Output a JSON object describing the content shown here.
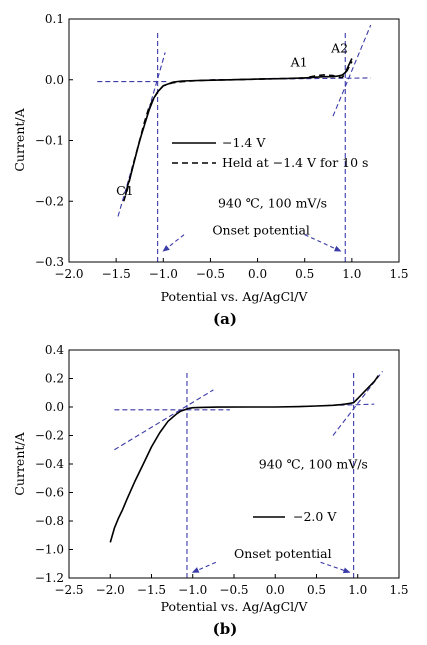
{
  "chart_data": [
    {
      "panel_label": "(a)",
      "type": "line",
      "xlabel": "Potential vs. Ag/AgCl/V",
      "ylabel": "Current/A",
      "xlim": [
        -2.0,
        1.5
      ],
      "ylim": [
        -0.3,
        0.1
      ],
      "xticks": [
        -2.0,
        -1.5,
        -1.0,
        -0.5,
        0.0,
        0.5,
        1.0,
        1.5
      ],
      "xtick_labels": [
        "−2.0",
        "−1.5",
        "−1.0",
        "−0.5",
        "0.0",
        "0.5",
        "1.0",
        "1.5"
      ],
      "yticks": [
        0.1,
        0.0,
        -0.1,
        -0.2,
        -0.3
      ],
      "ytick_labels": [
        "0.1",
        "0.0",
        "−0.1",
        "−0.2",
        "−0.3"
      ],
      "grid": false,
      "legend_position": "center-right",
      "series": [
        {
          "name": "−1.4 V",
          "style": "solid",
          "x": [
            -1.4,
            -1.38,
            -1.35,
            -1.3,
            -1.25,
            -1.2,
            -1.15,
            -1.1,
            -1.06,
            -1.0,
            -0.9,
            -0.8,
            -0.6,
            -0.3,
            0.0,
            0.3,
            0.5,
            0.6,
            0.7,
            0.8,
            0.85,
            0.9,
            0.93,
            0.95,
            0.97,
            1.0
          ],
          "y": [
            -0.19,
            -0.175,
            -0.16,
            -0.13,
            -0.1,
            -0.075,
            -0.05,
            -0.03,
            -0.02,
            -0.01,
            -0.004,
            -0.002,
            -0.001,
            0.0,
            0.001,
            0.002,
            0.003,
            0.004,
            0.005,
            0.005,
            0.006,
            0.008,
            0.012,
            0.018,
            0.025,
            0.035
          ]
        },
        {
          "name": "Held at −1.4 V for 10 s",
          "style": "dashed",
          "x": [
            -1.42,
            -1.38,
            -1.32,
            -1.25,
            -1.2,
            -1.15,
            -1.1,
            -1.05,
            -1.0,
            -0.9,
            -0.8,
            -0.6,
            -0.3,
            0.0,
            0.3,
            0.5,
            0.6,
            0.7,
            0.8,
            0.85,
            0.9,
            0.95,
            1.0
          ],
          "y": [
            -0.2,
            -0.18,
            -0.14,
            -0.1,
            -0.07,
            -0.045,
            -0.03,
            -0.018,
            -0.01,
            -0.005,
            -0.003,
            -0.001,
            0.0,
            0.001,
            0.002,
            0.003,
            0.006,
            0.008,
            0.007,
            0.004,
            0.004,
            0.015,
            0.03
          ]
        }
      ],
      "tangent_lines": [
        {
          "x": [
            -1.7,
            -0.95
          ],
          "y": [
            -0.003,
            -0.003
          ]
        },
        {
          "x": [
            -1.48,
            -0.98
          ],
          "y": [
            -0.225,
            0.045
          ]
        },
        {
          "x": [
            -0.5,
            1.2
          ],
          "y": [
            0.0,
            0.003
          ]
        },
        {
          "x": [
            0.8,
            1.2
          ],
          "y": [
            -0.06,
            0.09
          ]
        }
      ],
      "onset_lines": [
        {
          "x": -1.06,
          "y": [
            -0.3,
            0.077
          ]
        },
        {
          "x": 0.93,
          "y": [
            -0.3,
            0.077
          ]
        }
      ],
      "annotations": [
        {
          "text": "C1",
          "x": -1.5,
          "y": -0.19
        },
        {
          "text": "A1",
          "x": 0.35,
          "y": 0.022
        },
        {
          "text": "A2",
          "x": 0.78,
          "y": 0.045
        },
        {
          "text": "940 ℃, 100 mV/s",
          "x": -0.42,
          "y": -0.21
        },
        {
          "text": "Onset potential",
          "x": -0.48,
          "y": -0.255
        }
      ],
      "onset_arrows": [
        {
          "from": [
            -0.78,
            -0.255
          ],
          "to": [
            -1.0,
            -0.282
          ]
        },
        {
          "from": [
            0.5,
            -0.255
          ],
          "to": [
            0.88,
            -0.282
          ]
        }
      ]
    },
    {
      "panel_label": "(b)",
      "type": "line",
      "xlabel": "Potential vs. Ag/AgCl/V",
      "ylabel": "Current/A",
      "xlim": [
        -2.5,
        1.5
      ],
      "ylim": [
        -1.2,
        0.4
      ],
      "xticks": [
        -2.5,
        -2.0,
        -1.5,
        -1.0,
        -0.5,
        0.0,
        0.5,
        1.0,
        1.5
      ],
      "xtick_labels": [
        "−2.5",
        "−2.0",
        "−1.5",
        "−1.0",
        "−0.5",
        "0.0",
        "0.5",
        "1.0",
        "1.5"
      ],
      "yticks": [
        0.4,
        0.2,
        0.0,
        -0.2,
        -0.4,
        -0.6,
        -0.8,
        -1.0,
        -1.2
      ],
      "ytick_labels": [
        "0.4",
        "0.2",
        "0.0",
        "−0.2",
        "−0.4",
        "−0.6",
        "−0.8",
        "−1.0",
        "−1.2"
      ],
      "grid": false,
      "legend_position": "center-right",
      "series": [
        {
          "name": "−2.0 V",
          "style": "solid",
          "x": [
            -2.0,
            -1.95,
            -1.9,
            -1.85,
            -1.8,
            -1.7,
            -1.6,
            -1.5,
            -1.4,
            -1.3,
            -1.2,
            -1.15,
            -1.1,
            -1.05,
            -1.0,
            -0.9,
            -0.7,
            -0.3,
            0.0,
            0.3,
            0.5,
            0.7,
            0.8,
            0.85,
            0.9,
            0.95,
            1.0,
            1.1,
            1.2,
            1.25
          ],
          "y": [
            -0.95,
            -0.85,
            -0.78,
            -0.72,
            -0.65,
            -0.52,
            -0.4,
            -0.28,
            -0.18,
            -0.1,
            -0.05,
            -0.03,
            -0.02,
            -0.01,
            -0.005,
            -0.003,
            -0.001,
            0.0,
            0.0,
            0.003,
            0.007,
            0.012,
            0.017,
            0.02,
            0.025,
            0.03,
            0.06,
            0.12,
            0.18,
            0.22
          ]
        }
      ],
      "tangent_lines": [
        {
          "x": [
            -1.95,
            -0.55
          ],
          "y": [
            -0.02,
            -0.02
          ]
        },
        {
          "x": [
            -1.95,
            -0.75
          ],
          "y": [
            -0.3,
            0.12
          ]
        },
        {
          "x": [
            0.1,
            1.2
          ],
          "y": [
            0.0,
            0.02
          ]
        },
        {
          "x": [
            0.7,
            1.3
          ],
          "y": [
            -0.2,
            0.25
          ]
        }
      ],
      "onset_lines": [
        {
          "x": -1.07,
          "y": [
            -1.2,
            0.25
          ]
        },
        {
          "x": 0.95,
          "y": [
            -1.2,
            0.25
          ]
        }
      ],
      "annotations": [
        {
          "text": "940 ℃, 100 mV/s",
          "x": -0.2,
          "y": -0.43
        },
        {
          "text": "Onset potential",
          "x": -0.5,
          "y": -1.06
        }
      ],
      "onset_arrows": [
        {
          "from": [
            -0.72,
            -1.09
          ],
          "to": [
            -1.0,
            -1.16
          ]
        },
        {
          "from": [
            0.55,
            -1.09
          ],
          "to": [
            0.9,
            -1.16
          ]
        }
      ]
    }
  ]
}
